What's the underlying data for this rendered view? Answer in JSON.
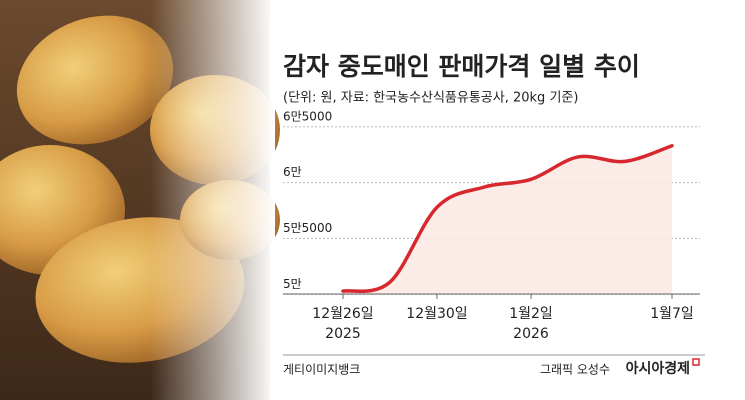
{
  "chart_data": {
    "type": "line",
    "title": "감자 중도매인 판매가격 일별 추이",
    "subtitle": "(단위: 원, 자료: 한국농수산식품유통공사, 20kg 기준)",
    "categories": [
      "12월26일",
      null,
      "12월30일",
      null,
      "1월2일",
      null,
      null,
      "1월7일"
    ],
    "year_labels": [
      "2025",
      null,
      null,
      null,
      "2026",
      null,
      null,
      null
    ],
    "series": [
      {
        "color": "#d7282f",
        "values": [
          50300,
          51100,
          57800,
          59600,
          60300,
          62300,
          61900,
          63300
        ]
      }
    ],
    "ylim": [
      49500,
      66500
    ],
    "yticks": [
      {
        "value": 50000,
        "label": "5만"
      },
      {
        "value": 55000,
        "label": "5만5000"
      },
      {
        "value": 60000,
        "label": "6만"
      },
      {
        "value": 65000,
        "label": "6만5000"
      }
    ],
    "grid": true,
    "photo_credit": "게티이미지뱅크",
    "graphic_credit": "그래픽 오성수",
    "publisher": "아시아경제"
  }
}
